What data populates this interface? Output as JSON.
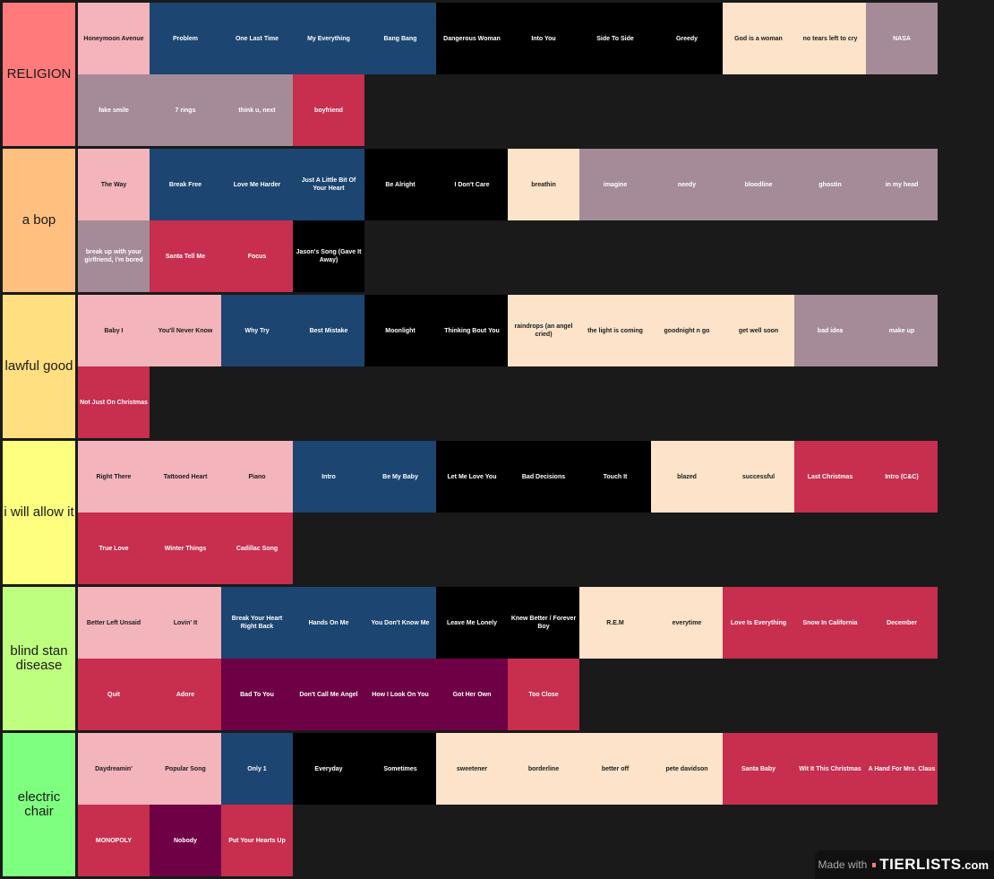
{
  "colors": {
    "pink": "#f4b4bc",
    "navy": "#1c4571",
    "black": "#000000",
    "peach": "#fde3c9",
    "mauve": "#a48b97",
    "crimson": "#c82e4e",
    "plum": "#6e0046",
    "background": "#1a1a1a"
  },
  "tiers": [
    {
      "label": "RELIGION",
      "color": "#ff7b7b",
      "items": [
        {
          "text": "Honeymoon Avenue",
          "color": "pink"
        },
        {
          "text": "Problem",
          "color": "navy"
        },
        {
          "text": "One Last Time",
          "color": "navy"
        },
        {
          "text": "My Everything",
          "color": "navy"
        },
        {
          "text": "Bang Bang",
          "color": "navy"
        },
        {
          "text": "Dangerous Woman",
          "color": "black"
        },
        {
          "text": "Into You",
          "color": "black"
        },
        {
          "text": "Side To Side",
          "color": "black"
        },
        {
          "text": "Greedy",
          "color": "black"
        },
        {
          "text": "God is a woman",
          "color": "peach"
        },
        {
          "text": "no tears left to cry",
          "color": "peach"
        },
        {
          "text": "NASA",
          "color": "mauve"
        },
        {
          "text": "fake smile",
          "color": "mauve"
        },
        {
          "text": "7 rings",
          "color": "mauve"
        },
        {
          "text": "think u, next",
          "color": "mauve"
        },
        {
          "text": "boyfriend",
          "color": "crimson"
        }
      ]
    },
    {
      "label": "a bop",
      "color": "#ffbf7f",
      "items": [
        {
          "text": "The Way",
          "color": "pink"
        },
        {
          "text": "Break Free",
          "color": "navy"
        },
        {
          "text": "Love Me Harder",
          "color": "navy"
        },
        {
          "text": "Just A Little Bit Of Your Heart",
          "color": "navy"
        },
        {
          "text": "Be Alright",
          "color": "black"
        },
        {
          "text": "I Don't Care",
          "color": "black"
        },
        {
          "text": "breathin",
          "color": "peach"
        },
        {
          "text": "imagine",
          "color": "mauve"
        },
        {
          "text": "needy",
          "color": "mauve"
        },
        {
          "text": "bloodline",
          "color": "mauve"
        },
        {
          "text": "ghostin",
          "color": "mauve"
        },
        {
          "text": "in my head",
          "color": "mauve"
        },
        {
          "text": "break up with your girlfriend, i'm bored",
          "color": "mauve"
        },
        {
          "text": "Santa Tell Me",
          "color": "crimson"
        },
        {
          "text": "Focus",
          "color": "crimson"
        },
        {
          "text": "Jason's Song (Gave It Away)",
          "color": "black"
        }
      ]
    },
    {
      "label": "lawful good",
      "color": "#ffdf7f",
      "items": [
        {
          "text": "Baby I",
          "color": "pink"
        },
        {
          "text": "You'll Never Know",
          "color": "pink"
        },
        {
          "text": "Why Try",
          "color": "navy"
        },
        {
          "text": "Best Mistake",
          "color": "navy"
        },
        {
          "text": "Moonlight",
          "color": "black"
        },
        {
          "text": "Thinking Bout You",
          "color": "black"
        },
        {
          "text": "raindrops (an angel cried)",
          "color": "peach"
        },
        {
          "text": "the light is coming",
          "color": "peach"
        },
        {
          "text": "goodnight n go",
          "color": "peach"
        },
        {
          "text": "get well soon",
          "color": "peach"
        },
        {
          "text": "bad idea",
          "color": "mauve"
        },
        {
          "text": "make up",
          "color": "mauve"
        },
        {
          "text": "Not Just On Christmas",
          "color": "crimson"
        }
      ]
    },
    {
      "label": "i will allow it",
      "color": "#ffff7f",
      "items": [
        {
          "text": "Right There",
          "color": "pink"
        },
        {
          "text": "Tattooed Heart",
          "color": "pink"
        },
        {
          "text": "Piano",
          "color": "pink"
        },
        {
          "text": "Intro",
          "color": "navy"
        },
        {
          "text": "Be My Baby",
          "color": "navy"
        },
        {
          "text": "Let Me Love You",
          "color": "black"
        },
        {
          "text": "Bad Decisions",
          "color": "black"
        },
        {
          "text": "Touch It",
          "color": "black"
        },
        {
          "text": "blazed",
          "color": "peach"
        },
        {
          "text": "successful",
          "color": "peach"
        },
        {
          "text": "Last Christmas",
          "color": "crimson"
        },
        {
          "text": "Intro (C&C)",
          "color": "crimson"
        },
        {
          "text": "True Love",
          "color": "crimson"
        },
        {
          "text": "Winter Things",
          "color": "crimson"
        },
        {
          "text": "Cadillac Song",
          "color": "crimson"
        }
      ]
    },
    {
      "label": "blind stan disease",
      "color": "#bfff7f",
      "items": [
        {
          "text": "Better Left Unsaid",
          "color": "pink"
        },
        {
          "text": "Lovin' It",
          "color": "pink"
        },
        {
          "text": "Break Your Heart Right Back",
          "color": "navy"
        },
        {
          "text": "Hands On Me",
          "color": "navy"
        },
        {
          "text": "You Don't Know Me",
          "color": "navy"
        },
        {
          "text": "Leave Me Lonely",
          "color": "black"
        },
        {
          "text": "Knew Better / Forever Boy",
          "color": "black"
        },
        {
          "text": "R.E.M",
          "color": "peach"
        },
        {
          "text": "everytime",
          "color": "peach"
        },
        {
          "text": "Love Is Everything",
          "color": "crimson"
        },
        {
          "text": "Snow In California",
          "color": "crimson"
        },
        {
          "text": "December",
          "color": "crimson"
        },
        {
          "text": "Quit",
          "color": "crimson"
        },
        {
          "text": "Adore",
          "color": "crimson"
        },
        {
          "text": "Bad To You",
          "color": "plum"
        },
        {
          "text": "Don't Call Me Angel",
          "color": "plum"
        },
        {
          "text": "How I Look On You",
          "color": "plum"
        },
        {
          "text": "Got Her Own",
          "color": "plum"
        },
        {
          "text": "Too Close",
          "color": "crimson"
        }
      ]
    },
    {
      "label": "electric chair",
      "color": "#7fff7f",
      "items": [
        {
          "text": "Daydreamin'",
          "color": "pink"
        },
        {
          "text": "Popular Song",
          "color": "pink"
        },
        {
          "text": "Only 1",
          "color": "navy"
        },
        {
          "text": "Everyday",
          "color": "black"
        },
        {
          "text": "Sometimes",
          "color": "black"
        },
        {
          "text": "sweetener",
          "color": "peach"
        },
        {
          "text": "borderline",
          "color": "peach"
        },
        {
          "text": "better off",
          "color": "peach"
        },
        {
          "text": "pete davidson",
          "color": "peach"
        },
        {
          "text": "Santa Baby",
          "color": "crimson"
        },
        {
          "text": "Wit It This Christmas",
          "color": "crimson"
        },
        {
          "text": "A Hand For Mrs. Claus",
          "color": "crimson"
        },
        {
          "text": "MONOPOLY",
          "color": "crimson"
        },
        {
          "text": "Nobody",
          "color": "plum"
        },
        {
          "text": "Put Your Hearts Up",
          "color": "crimson"
        }
      ]
    }
  ],
  "watermark": {
    "made_with": "Made with",
    "logo": "TIERLISTS",
    "suffix": ".com"
  }
}
